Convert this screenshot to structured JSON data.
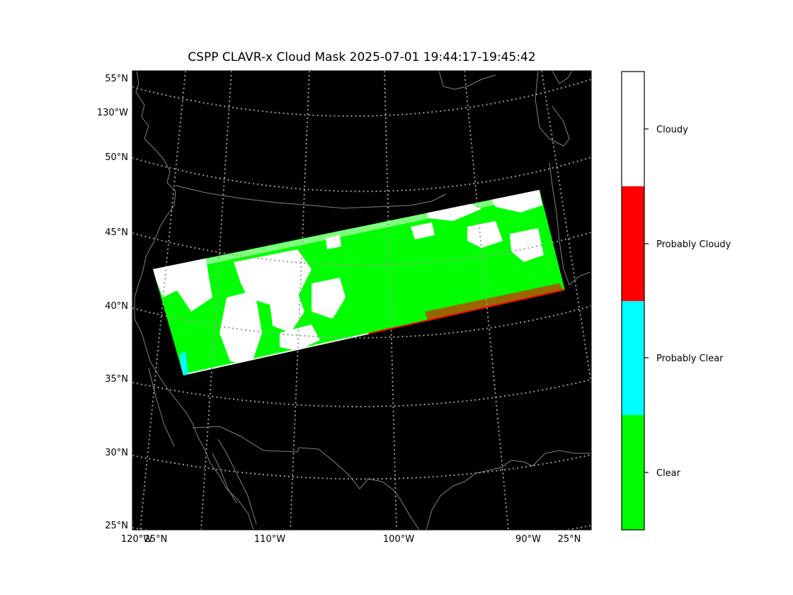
{
  "title": "CSPP CLAVR-x Cloud Mask 2025-07-01 19:44:17-19:45:42",
  "map": {
    "background_color": "#000000",
    "coastline_color": "#808080",
    "graticule_color": "#9a9a9a",
    "lat_labels": [
      "55°N",
      "130°W",
      "50°N",
      "45°N",
      "40°N",
      "35°N",
      "30°N",
      "25°N"
    ],
    "bottom_labels": [
      "120°W",
      "25°N",
      "110°W",
      "100°W",
      "90°W",
      "25°N"
    ]
  },
  "legend": {
    "categories": [
      {
        "label": "Clear",
        "color": "#00ff00"
      },
      {
        "label": "Probably Clear",
        "color": "#00ffff"
      },
      {
        "label": "Probably Cloudy",
        "color": "#ff0000"
      },
      {
        "label": "Cloudy",
        "color": "#ffffff"
      }
    ]
  }
}
